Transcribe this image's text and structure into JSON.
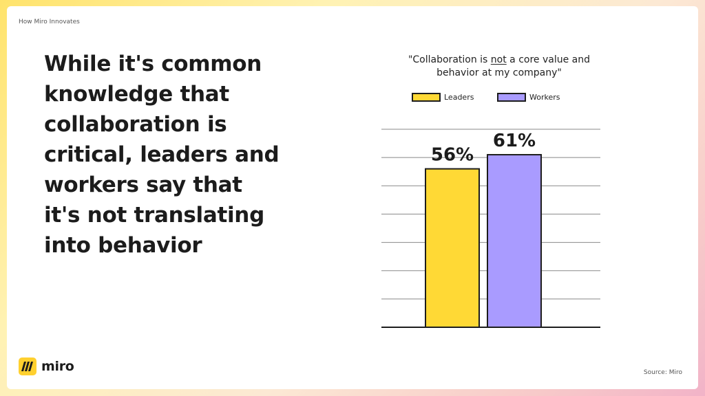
{
  "header": {
    "eyebrow": "How Miro Innovates"
  },
  "headline": {
    "lines": [
      "While it's common",
      "knowledge that",
      "collaboration is",
      "critical, leaders and",
      "workers say that",
      "it's not translating",
      "into behavior"
    ]
  },
  "chart_data": {
    "type": "bar",
    "title": "\"Collaboration is not a core value and behavior at my company\"",
    "title_lines": {
      "line1_before": "\"Collaboration is ",
      "line1_emphasis": "not",
      "line1_after": " a core value and",
      "line2": "behavior at my company\""
    },
    "categories": [
      "Leaders",
      "Workers"
    ],
    "values": [
      56,
      61
    ],
    "value_labels": [
      "56%",
      "61%"
    ],
    "colors": [
      "#FFD935",
      "#A99BFF"
    ],
    "unit": "%",
    "ylim": [
      0,
      70
    ],
    "gridlines": [
      10,
      20,
      30,
      40,
      50,
      60,
      70
    ],
    "grid": true,
    "legend": {
      "position": "top",
      "entries": [
        {
          "label": "Leaders",
          "color": "#FFD935"
        },
        {
          "label": "Workers",
          "color": "#A99BFF"
        }
      ]
    },
    "xlabel": "",
    "ylabel": ""
  },
  "footer": {
    "brand": "miro",
    "source": "Source: Miro"
  },
  "colors": {
    "text": "#1C1C1C",
    "leaders": "#FFD935",
    "workers": "#A99BFF",
    "brand_yellow": "#FFD02F",
    "grid": "#888888"
  },
  "icons": {
    "logo": "miro-logo-icon"
  }
}
